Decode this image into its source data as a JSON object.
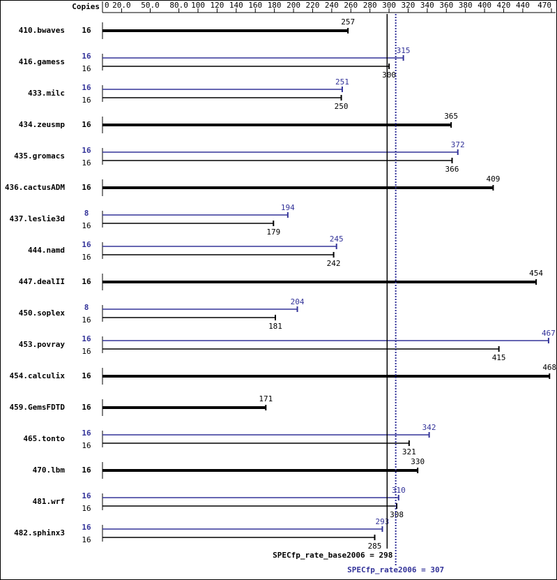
{
  "chart_data": {
    "type": "bar",
    "copies_header": "Copies",
    "categories": [
      "410.bwaves",
      "416.gamess",
      "433.milc",
      "434.zeusmp",
      "435.gromacs",
      "436.cactusADM",
      "437.leslie3d",
      "444.namd",
      "447.dealII",
      "450.soplex",
      "453.povray",
      "454.calculix",
      "459.GemsFDTD",
      "465.tonto",
      "470.lbm",
      "481.wrf",
      "482.sphinx3"
    ],
    "series": [
      {
        "color": "#000000",
        "copies": [
          16,
          16,
          16,
          16,
          16,
          16,
          16,
          16,
          16,
          16,
          16,
          16,
          16,
          16,
          16,
          16,
          16
        ],
        "values": [
          257,
          300,
          250,
          365,
          366,
          409,
          179,
          242,
          454,
          181,
          415,
          468,
          171,
          321,
          330,
          308,
          285
        ]
      },
      {
        "color": "#333399",
        "copies": [
          null,
          16,
          16,
          null,
          16,
          null,
          8,
          16,
          null,
          8,
          16,
          null,
          null,
          16,
          null,
          16,
          16
        ],
        "values": [
          null,
          315,
          251,
          null,
          372,
          null,
          194,
          245,
          null,
          204,
          467,
          null,
          null,
          342,
          null,
          310,
          293
        ]
      }
    ],
    "xlim": [
      0,
      470
    ],
    "xticks": [
      0,
      {
        "value": 20,
        "label": "20.0"
      },
      {
        "value": 50,
        "label": "50.0"
      },
      {
        "value": 80,
        "label": "80.0"
      },
      100,
      120,
      140,
      160,
      180,
      200,
      220,
      240,
      260,
      280,
      300,
      320,
      340,
      360,
      380,
      400,
      420,
      440,
      470
    ],
    "summary_lines": [
      {
        "label": "SPECfp_rate_base2006 = 298",
        "value": 298,
        "color": "#000000",
        "style": "solid"
      },
      {
        "label": "SPECfp_rate2006 = 307",
        "value": 307,
        "color": "#333399",
        "style": "dotted"
      }
    ]
  }
}
